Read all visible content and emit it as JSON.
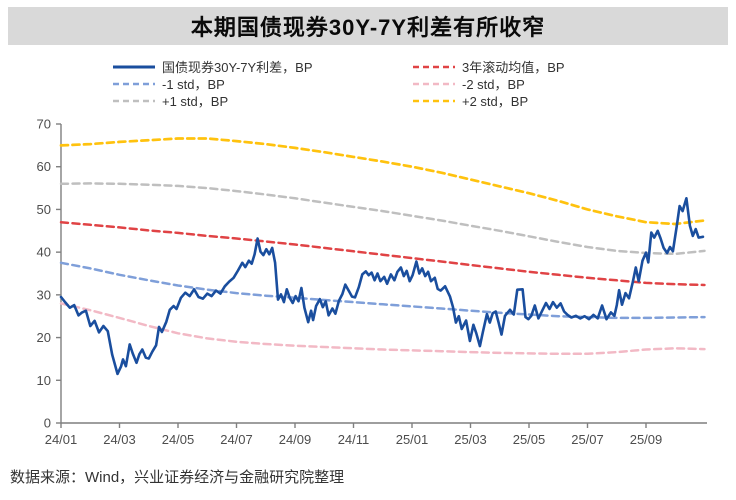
{
  "title": "本期国债现券30Y-7Y利差有所收窄",
  "source_note": "数据来源：Wind，兴业证券经济与金融研究院整理",
  "colors": {
    "banner_bg": "#d9d9d9",
    "axis": "#7f7f7f",
    "tick_text": "#4d4d4d",
    "main_line": "#1a4e9e",
    "rolling_mean": "#e04345",
    "minus1std": "#7f9fd9",
    "minus2std": "#f2b9c5",
    "plus1std": "#bfbfbf",
    "plus2std": "#ffc20e"
  },
  "chart_data": {
    "type": "line",
    "x_unit": "months since 2024-01",
    "x_tick_labels": [
      "24/01",
      "24/03",
      "24/05",
      "24/07",
      "24/09",
      "24/11",
      "25/01",
      "25/03",
      "25/05",
      "25/07",
      "25/09"
    ],
    "x_tick_month_step": 2,
    "xlim_months": [
      0,
      22.1
    ],
    "ylim": [
      0,
      70
    ],
    "y_ticks": [
      0,
      10,
      20,
      30,
      40,
      50,
      60,
      70
    ],
    "grid": false,
    "legend_position": "top",
    "draw_order": [
      5,
      4,
      1,
      3,
      2,
      0
    ],
    "series": [
      {
        "name": "国债现券30Y-7Y利差，BP",
        "style": "solid",
        "color": "#1a4e9e",
        "width": 2.6,
        "points": [
          [
            0,
            29.5
          ],
          [
            0.15,
            28.2
          ],
          [
            0.3,
            27.0
          ],
          [
            0.45,
            27.6
          ],
          [
            0.6,
            25.2
          ],
          [
            0.72,
            25.9
          ],
          [
            0.85,
            26.3
          ],
          [
            1.0,
            22.7
          ],
          [
            1.15,
            23.9
          ],
          [
            1.3,
            21.2
          ],
          [
            1.45,
            22.7
          ],
          [
            1.6,
            21.5
          ],
          [
            1.75,
            16.0
          ],
          [
            1.93,
            11.5
          ],
          [
            2.05,
            13.2
          ],
          [
            2.12,
            14.9
          ],
          [
            2.22,
            13.3
          ],
          [
            2.35,
            18.4
          ],
          [
            2.45,
            16.3
          ],
          [
            2.58,
            14.1
          ],
          [
            2.68,
            16.1
          ],
          [
            2.78,
            17.2
          ],
          [
            2.9,
            15.3
          ],
          [
            3.0,
            15.1
          ],
          [
            3.12,
            16.7
          ],
          [
            3.25,
            18.2
          ],
          [
            3.35,
            22.5
          ],
          [
            3.45,
            21.3
          ],
          [
            3.6,
            23.7
          ],
          [
            3.72,
            26.5
          ],
          [
            3.85,
            27.4
          ],
          [
            3.95,
            26.7
          ],
          [
            4.1,
            29.3
          ],
          [
            4.25,
            30.5
          ],
          [
            4.4,
            29.7
          ],
          [
            4.55,
            31.3
          ],
          [
            4.7,
            29.5
          ],
          [
            4.85,
            29.1
          ],
          [
            5.0,
            30.3
          ],
          [
            5.15,
            29.7
          ],
          [
            5.3,
            31.0
          ],
          [
            5.45,
            30.3
          ],
          [
            5.6,
            32.0
          ],
          [
            5.75,
            33.1
          ],
          [
            5.9,
            34.0
          ],
          [
            6.05,
            35.7
          ],
          [
            6.2,
            37.5
          ],
          [
            6.3,
            36.5
          ],
          [
            6.42,
            38.0
          ],
          [
            6.52,
            37.3
          ],
          [
            6.62,
            39.5
          ],
          [
            6.72,
            43.2
          ],
          [
            6.82,
            40.1
          ],
          [
            6.92,
            39.3
          ],
          [
            7.02,
            40.7
          ],
          [
            7.12,
            39.5
          ],
          [
            7.22,
            41.0
          ],
          [
            7.32,
            37.5
          ],
          [
            7.42,
            28.9
          ],
          [
            7.52,
            30.1
          ],
          [
            7.62,
            28.3
          ],
          [
            7.72,
            31.3
          ],
          [
            7.82,
            29.3
          ],
          [
            7.92,
            28.1
          ],
          [
            8.02,
            29.7
          ],
          [
            8.12,
            28.5
          ],
          [
            8.22,
            31.6
          ],
          [
            8.32,
            27.0
          ],
          [
            8.45,
            23.6
          ],
          [
            8.55,
            26.3
          ],
          [
            8.62,
            24.1
          ],
          [
            8.72,
            27.4
          ],
          [
            8.85,
            29.0
          ],
          [
            8.95,
            27.1
          ],
          [
            9.05,
            28.5
          ],
          [
            9.15,
            25.2
          ],
          [
            9.28,
            26.8
          ],
          [
            9.38,
            25.6
          ],
          [
            9.5,
            28.6
          ],
          [
            9.62,
            30.2
          ],
          [
            9.72,
            32.4
          ],
          [
            9.85,
            30.8
          ],
          [
            9.95,
            29.6
          ],
          [
            10.05,
            29.4
          ],
          [
            10.18,
            31.8
          ],
          [
            10.3,
            34.8
          ],
          [
            10.42,
            35.5
          ],
          [
            10.52,
            34.6
          ],
          [
            10.62,
            35.2
          ],
          [
            10.72,
            33.4
          ],
          [
            10.82,
            35.0
          ],
          [
            10.92,
            33.2
          ],
          [
            11.05,
            34.2
          ],
          [
            11.15,
            32.6
          ],
          [
            11.28,
            34.8
          ],
          [
            11.4,
            33.4
          ],
          [
            11.5,
            35.4
          ],
          [
            11.62,
            36.4
          ],
          [
            11.72,
            34.4
          ],
          [
            11.82,
            35.6
          ],
          [
            11.92,
            33.2
          ],
          [
            12.02,
            34.6
          ],
          [
            12.15,
            37.8
          ],
          [
            12.25,
            35.0
          ],
          [
            12.35,
            36.2
          ],
          [
            12.45,
            34.4
          ],
          [
            12.55,
            35.4
          ],
          [
            12.65,
            33.2
          ],
          [
            12.78,
            34.0
          ],
          [
            12.88,
            31.4
          ],
          [
            12.98,
            31.0
          ],
          [
            13.13,
            32.0
          ],
          [
            13.3,
            29.6
          ],
          [
            13.4,
            27.2
          ],
          [
            13.5,
            23.5
          ],
          [
            13.6,
            25.0
          ],
          [
            13.7,
            22.0
          ],
          [
            13.85,
            24.0
          ],
          [
            13.98,
            19.2
          ],
          [
            14.1,
            23.0
          ],
          [
            14.2,
            21.0
          ],
          [
            14.32,
            18.0
          ],
          [
            14.42,
            21.2
          ],
          [
            14.56,
            25.5
          ],
          [
            14.66,
            23.5
          ],
          [
            14.76,
            25.7
          ],
          [
            14.86,
            26.1
          ],
          [
            14.96,
            23.5
          ],
          [
            15.06,
            20.7
          ],
          [
            15.18,
            25.1
          ],
          [
            15.35,
            26.5
          ],
          [
            15.48,
            25.4
          ],
          [
            15.6,
            31.2
          ],
          [
            15.78,
            31.3
          ],
          [
            15.88,
            24.8
          ],
          [
            15.98,
            24.3
          ],
          [
            16.08,
            25.1
          ],
          [
            16.2,
            27.5
          ],
          [
            16.32,
            24.5
          ],
          [
            16.45,
            26.3
          ],
          [
            16.58,
            28.1
          ],
          [
            16.7,
            26.7
          ],
          [
            16.82,
            28.3
          ],
          [
            16.95,
            27.0
          ],
          [
            17.08,
            28.0
          ],
          [
            17.2,
            26.1
          ],
          [
            17.32,
            25.3
          ],
          [
            17.45,
            24.7
          ],
          [
            17.6,
            25.1
          ],
          [
            17.75,
            24.5
          ],
          [
            17.9,
            25.0
          ],
          [
            18.05,
            24.3
          ],
          [
            18.2,
            25.3
          ],
          [
            18.35,
            24.5
          ],
          [
            18.5,
            27.5
          ],
          [
            18.65,
            24.3
          ],
          [
            18.8,
            25.9
          ],
          [
            18.92,
            25.1
          ],
          [
            19.0,
            27.6
          ],
          [
            19.08,
            31.1
          ],
          [
            19.18,
            27.7
          ],
          [
            19.3,
            30.4
          ],
          [
            19.42,
            29.2
          ],
          [
            19.55,
            33.0
          ],
          [
            19.65,
            36.4
          ],
          [
            19.75,
            33.2
          ],
          [
            19.88,
            38.0
          ],
          [
            20.0,
            39.9
          ],
          [
            20.08,
            37.6
          ],
          [
            20.18,
            44.6
          ],
          [
            20.28,
            43.4
          ],
          [
            20.4,
            45.0
          ],
          [
            20.5,
            43.2
          ],
          [
            20.6,
            41.0
          ],
          [
            20.72,
            39.8
          ],
          [
            20.82,
            41.2
          ],
          [
            20.92,
            40.2
          ],
          [
            21.05,
            46.0
          ],
          [
            21.15,
            50.8
          ],
          [
            21.25,
            49.6
          ],
          [
            21.38,
            52.6
          ],
          [
            21.5,
            46.2
          ],
          [
            21.6,
            43.8
          ],
          [
            21.7,
            45.4
          ],
          [
            21.8,
            43.4
          ],
          [
            21.95,
            43.6
          ]
        ]
      },
      {
        "name": "3年滚动均值，BP",
        "style": "dashed",
        "color": "#e04345",
        "width": 2.5,
        "months": [
          0,
          1,
          2,
          3,
          4,
          5,
          6,
          7,
          8,
          9,
          10,
          11,
          12,
          13,
          14,
          15,
          16,
          17,
          18,
          19,
          20,
          21,
          22
        ],
        "values": [
          47.0,
          46.4,
          45.8,
          45.1,
          44.5,
          43.8,
          43.2,
          42.5,
          41.8,
          41.0,
          40.2,
          39.4,
          38.6,
          37.8,
          37.0,
          36.2,
          35.4,
          34.7,
          34.0,
          33.4,
          32.8,
          32.5,
          32.3
        ]
      },
      {
        "name": "-1 std，BP",
        "style": "dashed",
        "color": "#7f9fd9",
        "width": 2.5,
        "months": [
          0,
          1,
          2,
          3,
          4,
          5,
          6,
          7,
          8,
          9,
          10,
          11,
          12,
          13,
          14,
          15,
          16,
          17,
          18,
          19,
          20,
          21,
          22
        ],
        "values": [
          37.5,
          36.2,
          34.7,
          33.4,
          32.2,
          31.2,
          30.4,
          29.8,
          29.3,
          28.8,
          28.3,
          27.8,
          27.3,
          26.8,
          26.3,
          25.8,
          25.4,
          25.0,
          24.8,
          24.6,
          24.6,
          24.7,
          24.8
        ]
      },
      {
        "name": "-2 std，BP",
        "style": "dashed",
        "color": "#f2b9c5",
        "width": 2.5,
        "months": [
          0,
          1,
          2,
          3,
          4,
          5,
          6,
          7,
          8,
          9,
          10,
          11,
          12,
          13,
          14,
          15,
          16,
          17,
          18,
          19,
          20,
          21,
          22
        ],
        "values": [
          28.0,
          26.4,
          24.6,
          22.7,
          21.0,
          19.8,
          19.0,
          18.5,
          18.1,
          17.8,
          17.5,
          17.2,
          17.0,
          16.8,
          16.6,
          16.4,
          16.3,
          16.2,
          16.2,
          16.6,
          17.2,
          17.5,
          17.3
        ]
      },
      {
        "name": "+1 std，BP",
        "style": "dashed",
        "color": "#bfbfbf",
        "width": 2.5,
        "months": [
          0,
          1,
          2,
          3,
          4,
          5,
          6,
          7,
          8,
          9,
          10,
          11,
          12,
          13,
          14,
          15,
          16,
          17,
          18,
          19,
          20,
          21,
          22
        ],
        "values": [
          56.0,
          56.1,
          56.0,
          55.8,
          55.5,
          55.0,
          54.3,
          53.5,
          52.6,
          51.6,
          50.6,
          49.6,
          48.5,
          47.4,
          46.2,
          45.0,
          43.7,
          42.4,
          41.2,
          40.3,
          39.8,
          39.6,
          40.3
        ]
      },
      {
        "name": "+2 std，BP",
        "style": "dashed",
        "color": "#ffc20e",
        "width": 2.7,
        "months": [
          0,
          1,
          2,
          3,
          4,
          5,
          6,
          7,
          8,
          9,
          10,
          11,
          12,
          13,
          14,
          15,
          16,
          17,
          18,
          19,
          20,
          21,
          22
        ],
        "values": [
          65.0,
          65.3,
          65.8,
          66.2,
          66.6,
          66.6,
          66.0,
          65.3,
          64.4,
          63.4,
          62.3,
          61.2,
          60.0,
          58.6,
          57.0,
          55.4,
          53.8,
          52.0,
          50.0,
          48.4,
          47.0,
          46.6,
          47.4
        ]
      }
    ]
  }
}
